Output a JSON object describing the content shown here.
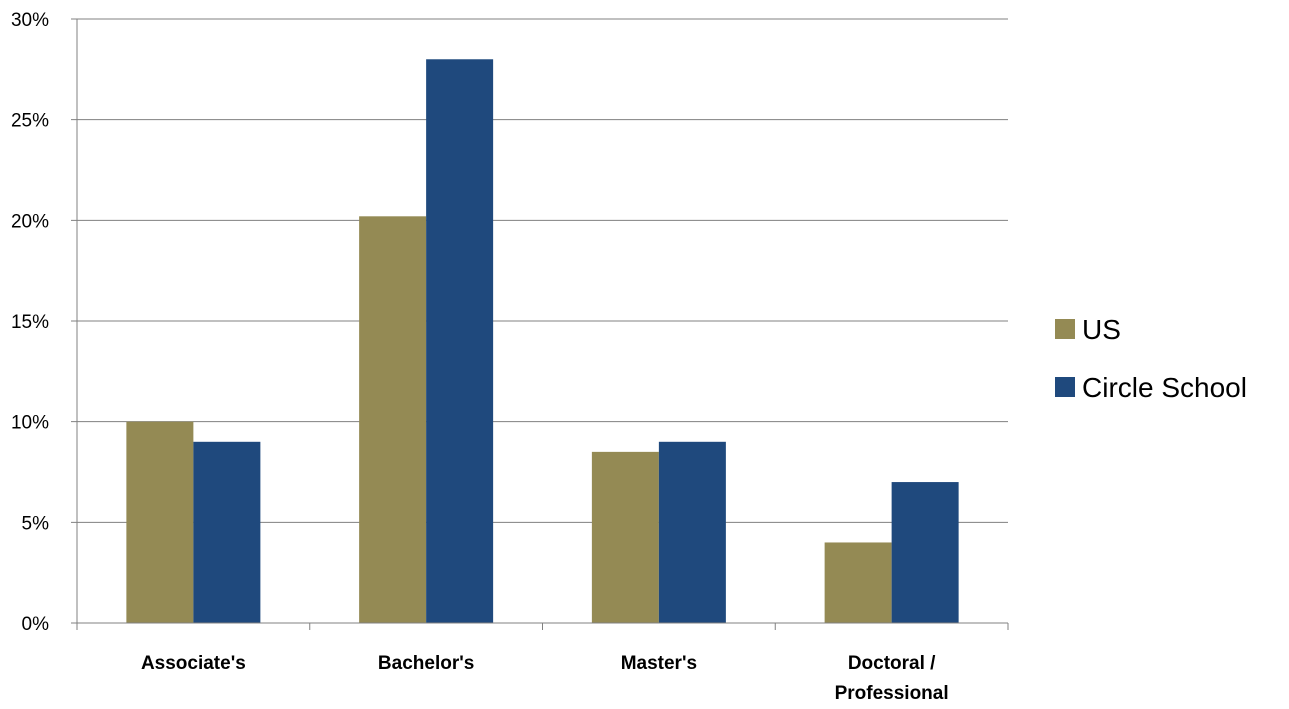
{
  "chart_data": {
    "type": "bar",
    "categories": [
      "Associate's",
      "Bachelor's",
      "Master's",
      [
        "Doctoral /",
        "Professional"
      ]
    ],
    "series": [
      {
        "name": "US",
        "values": [
          10,
          20.2,
          8.5,
          4
        ],
        "color": "#948a54"
      },
      {
        "name": "Circle School",
        "values": [
          9,
          28,
          9,
          7
        ],
        "color": "#1f497d"
      }
    ],
    "ylim": [
      0,
      30
    ],
    "yticks": [
      0,
      5,
      10,
      15,
      20,
      25,
      30
    ],
    "ytick_format": "percent",
    "grid": true,
    "gridline_color": "#808080",
    "legend_position": "right"
  }
}
